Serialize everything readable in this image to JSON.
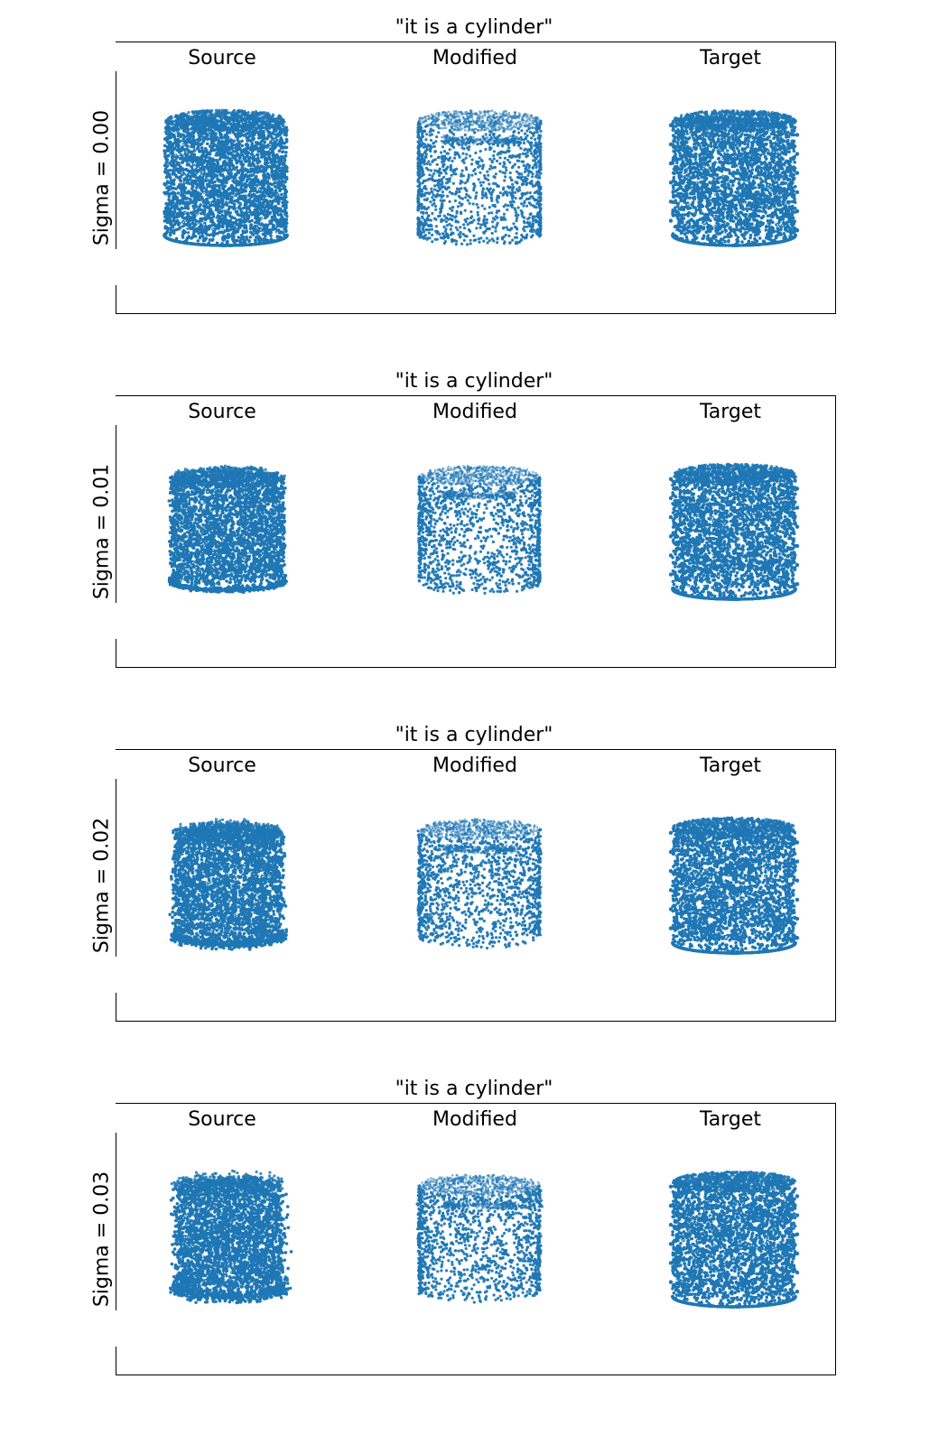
{
  "accent_color": "#1f77b4",
  "figure": {
    "columns": [
      "Source",
      "Modified",
      "Target"
    ],
    "panels": [
      {
        "title": "\"it is a cylinder\"",
        "row_label": "Sigma = 0.00"
      },
      {
        "title": "\"it is a cylinder\"",
        "row_label": "Sigma = 0.01"
      },
      {
        "title": "\"it is a cylinder\"",
        "row_label": "Sigma = 0.02"
      },
      {
        "title": "\"it is a cylinder\"",
        "row_label": "Sigma = 0.03"
      }
    ]
  },
  "chart_data": {
    "type": "scatter",
    "grid": false,
    "shape": "cylinder",
    "marker_color": "#1f77b4",
    "panels": [
      {
        "title": "\"it is a cylinder\"",
        "row_label": "Sigma = 0.00",
        "sigma": 0.0,
        "subplots": [
          {
            "name": "Source"
          },
          {
            "name": "Modified"
          },
          {
            "name": "Target"
          }
        ]
      },
      {
        "title": "\"it is a cylinder\"",
        "row_label": "Sigma = 0.01",
        "sigma": 0.01,
        "subplots": [
          {
            "name": "Source"
          },
          {
            "name": "Modified"
          },
          {
            "name": "Target"
          }
        ]
      },
      {
        "title": "\"it is a cylinder\"",
        "row_label": "Sigma = 0.02",
        "sigma": 0.02,
        "subplots": [
          {
            "name": "Source"
          },
          {
            "name": "Modified"
          },
          {
            "name": "Target"
          }
        ]
      },
      {
        "title": "\"it is a cylinder\"",
        "row_label": "Sigma = 0.03",
        "sigma": 0.03,
        "subplots": [
          {
            "name": "Source"
          },
          {
            "name": "Modified"
          },
          {
            "name": "Target"
          }
        ]
      }
    ]
  }
}
